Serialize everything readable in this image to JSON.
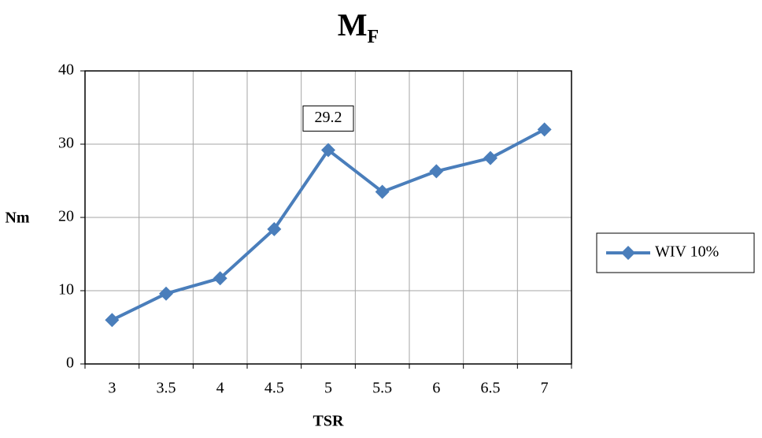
{
  "chart_data": {
    "type": "line",
    "title": "M",
    "title_subscript": "F",
    "x_label": "TSR",
    "y_label": "Nm",
    "categories": [
      "3",
      "3.5",
      "4",
      "4.5",
      "5",
      "5.5",
      "6",
      "6.5",
      "7"
    ],
    "series": [
      {
        "name": "WIV 10%",
        "color": "#4a7ebb",
        "values": [
          6.0,
          9.6,
          11.7,
          18.4,
          29.2,
          23.5,
          26.3,
          28.1,
          32.0
        ],
        "value_labels": [
          null,
          null,
          null,
          null,
          "29.2",
          null,
          null,
          null,
          null
        ]
      }
    ],
    "ylim": [
      0,
      40
    ],
    "yticks": [
      0,
      10,
      20,
      30,
      40
    ],
    "grid": true,
    "legend": "right"
  }
}
